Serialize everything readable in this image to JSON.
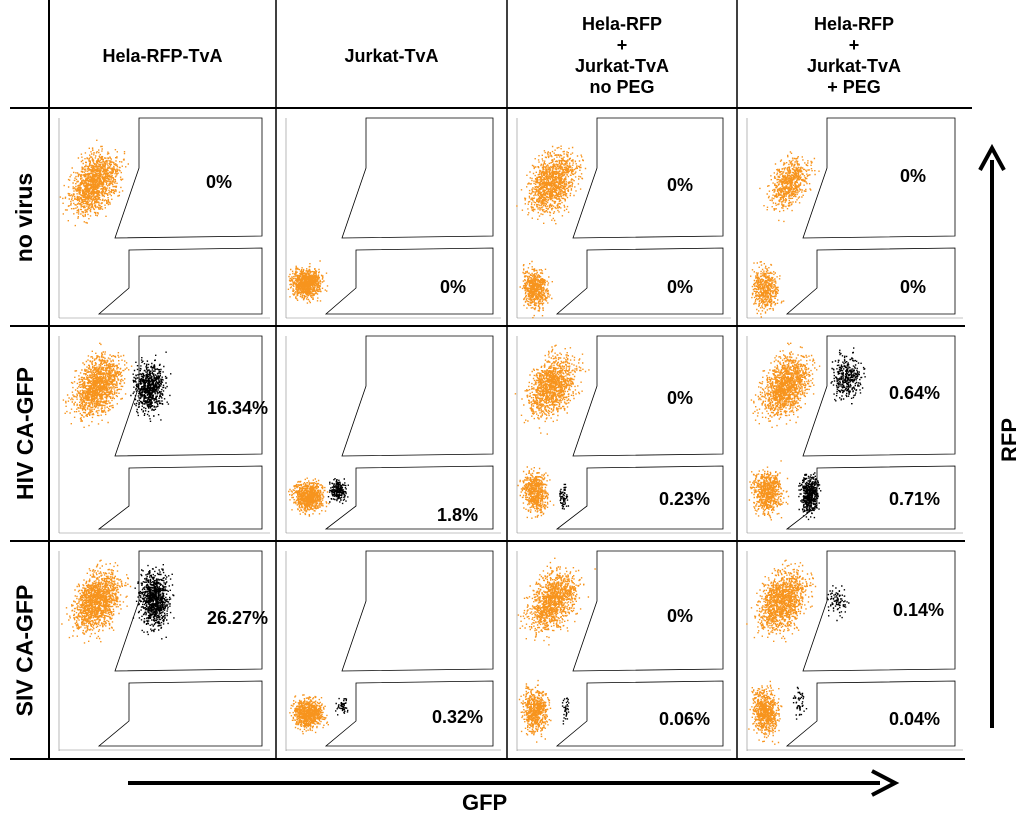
{
  "columns": [
    {
      "lines": [
        "Hela-RFP-TvA"
      ]
    },
    {
      "lines": [
        "Jurkat-TvA"
      ]
    },
    {
      "lines": [
        "Hela-RFP",
        "+",
        "Jurkat-TvA",
        "no PEG"
      ]
    },
    {
      "lines": [
        "Hela-RFP",
        "+",
        "Jurkat-TvA",
        "+ PEG"
      ]
    }
  ],
  "rows": [
    "no virus",
    "HIV CA-GFP",
    "SIV CA-GFP"
  ],
  "percentages": [
    [
      {
        "upper": "0%",
        "lower": ""
      },
      {
        "upper": "",
        "lower": "0%"
      },
      {
        "upper": "0%",
        "lower": "0%"
      },
      {
        "upper": "0%",
        "lower": "0%"
      }
    ],
    [
      {
        "upper": "16.34%",
        "lower": ""
      },
      {
        "upper": "",
        "lower": "1.8%"
      },
      {
        "upper": "0%",
        "lower": "0.23%"
      },
      {
        "upper": "0.64%",
        "lower": "0.71%"
      }
    ],
    [
      {
        "upper": "26.27%",
        "lower": ""
      },
      {
        "upper": "",
        "lower": "0.32%"
      },
      {
        "upper": "0%",
        "lower": "0.06%"
      },
      {
        "upper": "0.14%",
        "lower": "0.04%"
      }
    ]
  ],
  "axes": {
    "x_label": "GFP",
    "y_label": "RFP"
  },
  "colors": {
    "rfp_cells": "#f7941d",
    "gfp_cells": "#000000",
    "grid": "#000000"
  }
}
